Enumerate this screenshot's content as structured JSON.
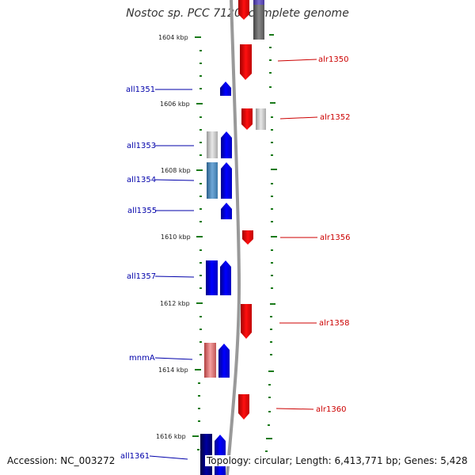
{
  "title": "Nostoc sp. PCC 7120, complete genome",
  "accession": "Accession: NC_003272",
  "topology": "Topology: circular; Length: 6,413,771 bp; Genes: 5,428",
  "ticks": [
    "1604 kbp",
    "1606 kbp",
    "1608 kbp",
    "1610 kbp",
    "1612 kbp",
    "1614 kbp",
    "1616 kbp"
  ],
  "left_genes": [
    "all1351",
    "all1353",
    "all1354",
    "all1355",
    "all1357",
    "mnmA",
    "all1361"
  ],
  "right_genes": [
    "alr1350",
    "alr1352",
    "alr1356",
    "alr1358",
    "alr1360"
  ],
  "colors": {
    "minus_strand": "#0000ee",
    "plus_strand": "#ee0000",
    "backbone": "#888888",
    "tick": "#1a7a1a"
  }
}
